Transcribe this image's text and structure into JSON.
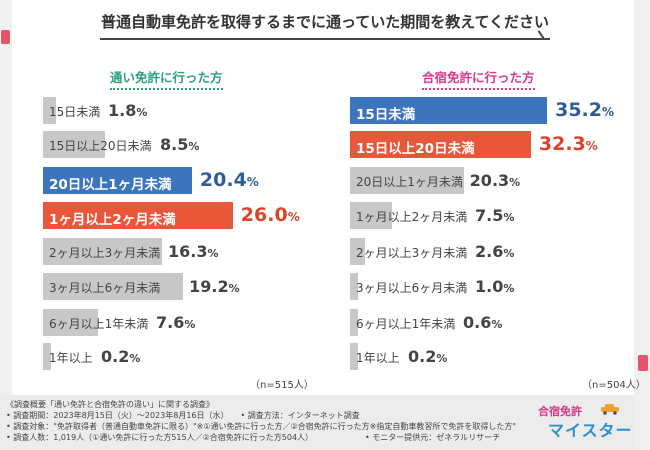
{
  "title": "普通自動車免許を取得するまでに通っていた期間を教えてください",
  "panels": {
    "left": {
      "title": "通い免許に行った方",
      "n": "（n=515人）"
    },
    "right": {
      "title": "合宿免許に行った方",
      "n": "（n=504人）"
    }
  },
  "chart_data": [
    {
      "type": "bar",
      "orientation": "horizontal",
      "title": "通い免許に行った方",
      "unit": "%",
      "categories": [
        "15日未満",
        "15日以上20日未満",
        "20日以上1ヶ月未満",
        "1ヶ月以上2ヶ月未満",
        "2ヶ月以上3ヶ月未満",
        "3ヶ月以上6ヶ月未満",
        "6ヶ月以上1年未満",
        "1年以上"
      ],
      "values": [
        1.8,
        8.5,
        20.4,
        26.0,
        16.3,
        19.2,
        7.6,
        0.2
      ],
      "value_labels": [
        "1.8",
        "8.5",
        "20.4",
        "26.0",
        "16.3",
        "19.2",
        "7.6",
        "0.2"
      ],
      "highlight_colors": [
        null,
        null,
        "#3d74be",
        "#e8573a",
        null,
        null,
        null,
        null
      ],
      "base_color": "#c8c8c8",
      "n": "n=515人"
    },
    {
      "type": "bar",
      "orientation": "horizontal",
      "title": "合宿免許に行った方",
      "unit": "%",
      "categories": [
        "15日未満",
        "15日以上20日未満",
        "20日以上1ヶ月未満",
        "1ヶ月以上2ヶ月未満",
        "2ヶ月以上3ヶ月未満",
        "3ヶ月以上6ヶ月未満",
        "6ヶ月以上1年未満",
        "1年以上"
      ],
      "values": [
        35.2,
        32.3,
        20.3,
        7.5,
        2.6,
        1.0,
        0.6,
        0.2
      ],
      "value_labels": [
        "35.2",
        "32.3",
        "20.3",
        "7.5",
        "2.6",
        "1.0",
        "0.6",
        "0.2"
      ],
      "highlight_colors": [
        "#3d74be",
        "#e8573a",
        null,
        null,
        null,
        null,
        null,
        null
      ],
      "base_color": "#c8c8c8",
      "n": "n=504人"
    }
  ],
  "footer": {
    "lines": [
      "《調査概要「通い免許と合宿免許の違い」に関する調査》",
      "• 調査期間：2023年8月15日（火）〜2023年8月16日（水）　　• 調査方法：インターネット調査",
      "• 調査対象：\"免許取得者（普通自動車免許に限る）\"※①通い免許に行った方／②合宿免許に行った方※指定自動車教習所で免許を取得した方\"",
      "• 調査人数：1,019人（①通い免許に行った方515人／②合宿免許に行った方504人）　　　　　　　• モニター提供元：ゼネラルリサーチ"
    ],
    "logo_top": "合宿免許",
    "logo_main": "マイスター"
  }
}
